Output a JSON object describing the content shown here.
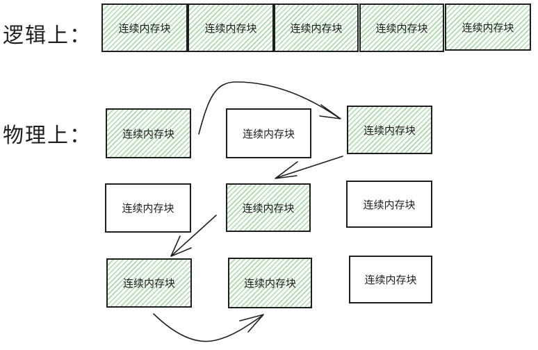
{
  "logical": {
    "label": "逻辑上：",
    "blocks": [
      {
        "text": "连续内存块",
        "filled": true
      },
      {
        "text": "连续内存块",
        "filled": true
      },
      {
        "text": "连续内存块",
        "filled": true
      },
      {
        "text": "连续内存块",
        "filled": true
      },
      {
        "text": "连续内存块",
        "filled": true
      }
    ]
  },
  "physical": {
    "label": "物理上：",
    "blocks": [
      {
        "text": "连续内存块",
        "filled": true
      },
      {
        "text": "连续内存块",
        "filled": false
      },
      {
        "text": "连续内存块",
        "filled": true
      },
      {
        "text": "连续内存块",
        "filled": false
      },
      {
        "text": "连续内存块",
        "filled": true
      },
      {
        "text": "连续内存块",
        "filled": false
      },
      {
        "text": "连续内存块",
        "filled": true
      },
      {
        "text": "连续内存块",
        "filled": true
      },
      {
        "text": "连续内存块",
        "filled": false
      }
    ]
  },
  "colors": {
    "fill_hatch": "#78c878",
    "stroke": "#1e1e1e"
  }
}
